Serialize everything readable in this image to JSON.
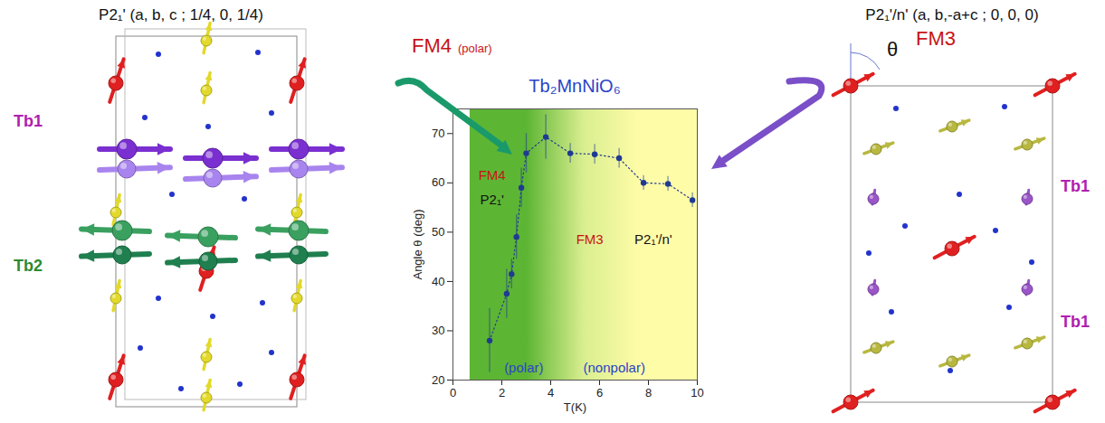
{
  "chart_data": {
    "type": "scatter",
    "title": "Tb₂MnNiO₆",
    "x_label": "T(K)",
    "y_label": "Angle θ (deg)",
    "xlim": [
      0,
      10
    ],
    "xticks": [
      0,
      2,
      4,
      6,
      8,
      10
    ],
    "ylim": [
      20,
      75
    ],
    "yticks": [
      20,
      30,
      40,
      50,
      60,
      70
    ],
    "x": [
      1.5,
      2.2,
      2.4,
      2.6,
      2.8,
      3.0,
      3.8,
      4.8,
      5.8,
      6.8,
      7.8,
      8.8,
      9.8
    ],
    "values": [
      28,
      37.5,
      41.5,
      49,
      59,
      66,
      69.3,
      66,
      65.8,
      65,
      60,
      59.8,
      56.5
    ],
    "errors": [
      6.5,
      5,
      3,
      4.5,
      4,
      4,
      4.5,
      2,
      2,
      2,
      1.5,
      1.5,
      1.5
    ],
    "color": "#1f3a93",
    "marker": "circle",
    "line_style": "dotted",
    "grid": false,
    "regions": [
      {
        "x": [
          0.7,
          10
        ],
        "colors": [
          "#5db534",
          "#5db534",
          "#d9ee8f",
          "#fffca8",
          "#fffca8"
        ]
      }
    ],
    "annotations": [
      {
        "text": "FM4",
        "x": 1.6,
        "y": 61.5,
        "color": "#c81414"
      },
      {
        "text": "P2₁'",
        "x": 1.6,
        "y": 56.5,
        "color": "#111111"
      },
      {
        "text": "FM3",
        "x": 5.6,
        "y": 48.5,
        "color": "#c81414"
      },
      {
        "text": "P2₁'/n'",
        "x": 8.2,
        "y": 48.5,
        "color": "#111111"
      },
      {
        "text": "(polar)",
        "x": 2.9,
        "y": 22.5,
        "color": "#2a44c8"
      },
      {
        "text": "(nonpolar)",
        "x": 6.6,
        "y": 22.5,
        "color": "#2a44c8"
      }
    ]
  },
  "left_panel": {
    "title": "P2₁' (a, b, c ; 1/4, 0, 1/4)",
    "labels": [
      "Tb1",
      "Tb2"
    ]
  },
  "right_panel": {
    "title": "P2₁'/n' (a, b,-a+c ; 0, 0, 0)",
    "labels": [
      "Tb1",
      "Tb1"
    ],
    "angle_label": "θ"
  },
  "callouts": [
    {
      "text": "FM4",
      "note": "(polar)"
    },
    {
      "text": "FM3"
    }
  ]
}
